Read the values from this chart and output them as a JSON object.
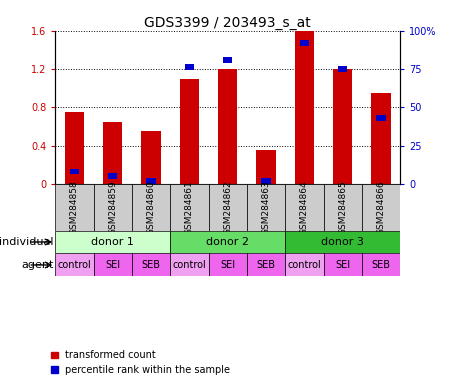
{
  "title": "GDS3399 / 203493_s_at",
  "samples": [
    "GSM284858",
    "GSM284859",
    "GSM284860",
    "GSM284861",
    "GSM284862",
    "GSM284863",
    "GSM284864",
    "GSM284865",
    "GSM284866"
  ],
  "transformed_count": [
    0.75,
    0.65,
    0.55,
    1.1,
    1.2,
    0.35,
    1.6,
    1.2,
    0.95
  ],
  "percentile_rank_pct": [
    10,
    7,
    4,
    78,
    83,
    4,
    94,
    77,
    45
  ],
  "ylim_left": [
    0,
    1.6
  ],
  "ylim_right": [
    0,
    100
  ],
  "yticks_left": [
    0,
    0.4,
    0.8,
    1.2,
    1.6
  ],
  "yticks_right": [
    0,
    25,
    50,
    75,
    100
  ],
  "ytick_labels_left": [
    "0",
    "0.4",
    "0.8",
    "1.2",
    "1.6"
  ],
  "ytick_labels_right": [
    "0",
    "25",
    "50",
    "75",
    "100%"
  ],
  "individuals": [
    {
      "label": "donor 1",
      "start": 0,
      "end": 3,
      "color": "#ccffcc"
    },
    {
      "label": "donor 2",
      "start": 3,
      "end": 6,
      "color": "#66dd66"
    },
    {
      "label": "donor 3",
      "start": 6,
      "end": 9,
      "color": "#33bb33"
    }
  ],
  "agents": [
    "control",
    "SEI",
    "SEB",
    "control",
    "SEI",
    "SEB",
    "control",
    "SEI",
    "SEB"
  ],
  "agent_colors": [
    "#f0a0f0",
    "#ee66ee",
    "#ee66ee",
    "#f0a0f0",
    "#ee66ee",
    "#ee66ee",
    "#f0a0f0",
    "#ee66ee",
    "#ee66ee"
  ],
  "sample_bg_color": "#cccccc",
  "bar_color_red": "#cc0000",
  "bar_color_blue": "#0000cc",
  "blue_square_size": 0.06,
  "legend_red": "transformed count",
  "legend_blue": "percentile rank within the sample",
  "individual_label": "individual",
  "agent_label": "agent",
  "title_fontsize": 10,
  "tick_fontsize": 7,
  "sample_fontsize": 6.5,
  "row_fontsize": 8,
  "agent_fontsize": 7
}
